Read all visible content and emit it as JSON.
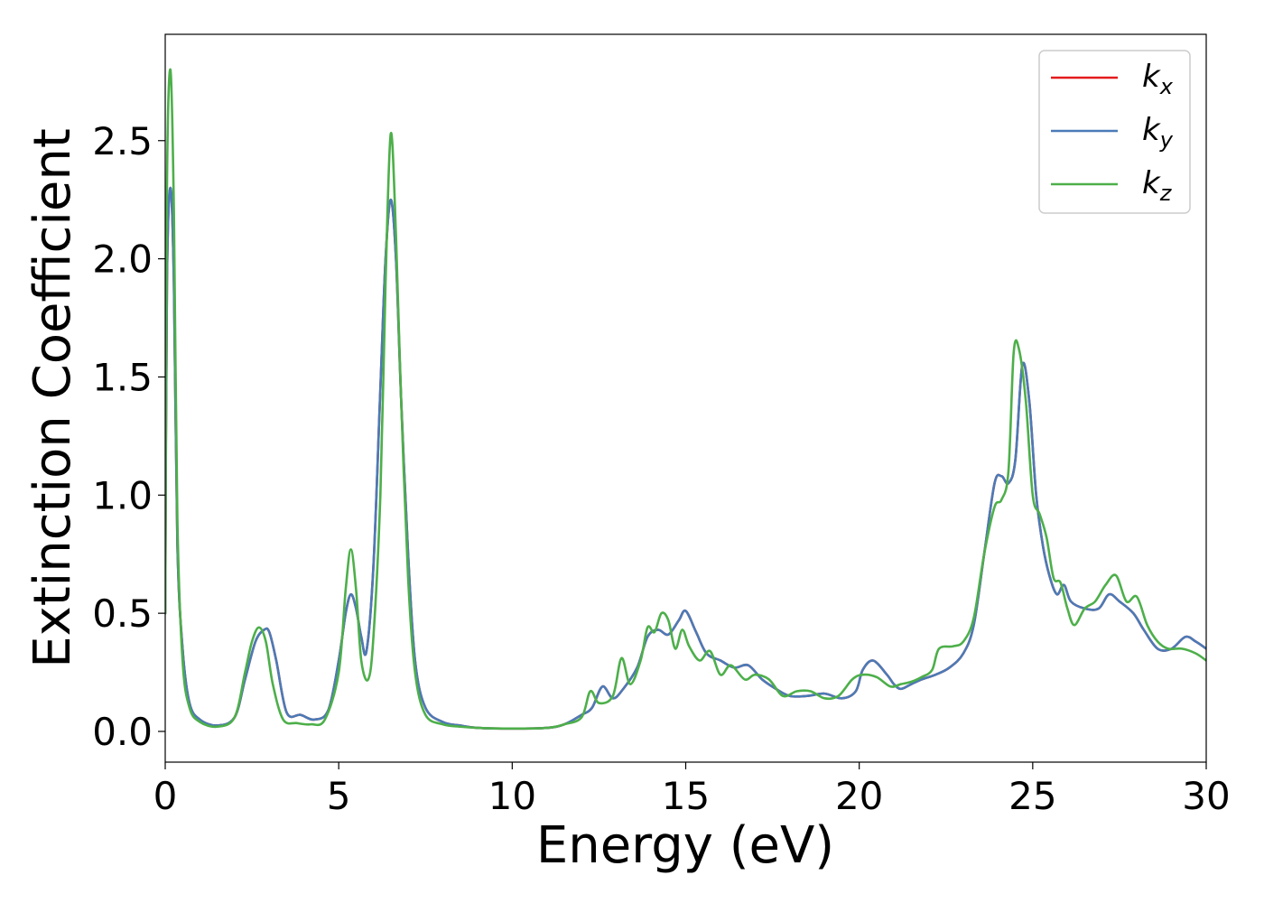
{
  "chart_data": {
    "type": "line",
    "xlabel": "Energy (eV)",
    "ylabel": "Extinction Coefficient",
    "xlim": [
      0,
      30
    ],
    "ylim": [
      -0.13,
      2.95
    ],
    "xticks": [
      0,
      5,
      10,
      15,
      20,
      25,
      30
    ],
    "xtick_labels": [
      "0",
      "5",
      "10",
      "15",
      "20",
      "25",
      "30"
    ],
    "yticks": [
      0.0,
      0.5,
      1.0,
      1.5,
      2.0,
      2.5
    ],
    "ytick_labels": [
      "0.0",
      "0.5",
      "1.0",
      "1.5",
      "2.0",
      "2.5"
    ],
    "grid": false,
    "legend_position": "top-right",
    "series": [
      {
        "name": "k",
        "subscript": "x",
        "color": "#e41a1c",
        "x": [
          0,
          0.05,
          0.15,
          0.25,
          0.35,
          0.5,
          0.7,
          1.0,
          1.5,
          2.0,
          2.3,
          2.6,
          2.85,
          3.0,
          3.2,
          3.5,
          3.9,
          4.3,
          4.7,
          5.0,
          5.2,
          5.35,
          5.5,
          5.65,
          5.8,
          6.0,
          6.2,
          6.35,
          6.5,
          6.65,
          6.8,
          7.0,
          7.2,
          7.5,
          8.0,
          8.5,
          9.0,
          10.0,
          11.0,
          11.5,
          12.0,
          12.3,
          12.6,
          12.9,
          13.2,
          13.6,
          13.9,
          14.2,
          14.5,
          14.8,
          15.0,
          15.3,
          15.6,
          16.0,
          16.4,
          16.8,
          17.2,
          17.6,
          18.0,
          18.5,
          19.0,
          19.5,
          19.9,
          20.1,
          20.4,
          20.8,
          21.0,
          21.2,
          21.5,
          21.8,
          22.2,
          22.6,
          23.0,
          23.3,
          23.6,
          23.9,
          24.1,
          24.3,
          24.5,
          24.7,
          24.9,
          25.1,
          25.3,
          25.5,
          25.7,
          25.9,
          26.1,
          26.5,
          26.9,
          27.2,
          27.5,
          27.9,
          28.2,
          28.6,
          29.0,
          29.4,
          29.7,
          30.0
        ],
        "y": [
          0.5,
          1.9,
          2.3,
          1.9,
          0.8,
          0.35,
          0.12,
          0.05,
          0.025,
          0.06,
          0.22,
          0.38,
          0.43,
          0.42,
          0.3,
          0.08,
          0.07,
          0.05,
          0.09,
          0.3,
          0.5,
          0.58,
          0.52,
          0.4,
          0.34,
          0.7,
          1.45,
          2.0,
          2.25,
          2.0,
          1.4,
          0.75,
          0.3,
          0.1,
          0.04,
          0.025,
          0.015,
          0.012,
          0.015,
          0.03,
          0.07,
          0.1,
          0.19,
          0.14,
          0.18,
          0.27,
          0.4,
          0.43,
          0.41,
          0.47,
          0.51,
          0.42,
          0.33,
          0.3,
          0.27,
          0.28,
          0.22,
          0.18,
          0.15,
          0.15,
          0.16,
          0.14,
          0.17,
          0.26,
          0.3,
          0.24,
          0.2,
          0.18,
          0.2,
          0.22,
          0.24,
          0.27,
          0.33,
          0.45,
          0.75,
          1.05,
          1.08,
          1.05,
          1.15,
          1.55,
          1.4,
          1.0,
          0.78,
          0.65,
          0.58,
          0.62,
          0.55,
          0.52,
          0.52,
          0.58,
          0.55,
          0.5,
          0.43,
          0.35,
          0.35,
          0.4,
          0.38,
          0.35
        ]
      },
      {
        "name": "k",
        "subscript": "y",
        "color": "#4a7bb7",
        "x": [
          0,
          0.05,
          0.15,
          0.25,
          0.35,
          0.5,
          0.7,
          1.0,
          1.5,
          2.0,
          2.3,
          2.6,
          2.85,
          3.0,
          3.2,
          3.5,
          3.9,
          4.3,
          4.7,
          5.0,
          5.2,
          5.35,
          5.5,
          5.65,
          5.8,
          6.0,
          6.2,
          6.35,
          6.5,
          6.65,
          6.8,
          7.0,
          7.2,
          7.5,
          8.0,
          8.5,
          9.0,
          10.0,
          11.0,
          11.5,
          12.0,
          12.3,
          12.6,
          12.9,
          13.2,
          13.6,
          13.9,
          14.2,
          14.5,
          14.8,
          15.0,
          15.3,
          15.6,
          16.0,
          16.4,
          16.8,
          17.2,
          17.6,
          18.0,
          18.5,
          19.0,
          19.5,
          19.9,
          20.1,
          20.4,
          20.8,
          21.0,
          21.2,
          21.5,
          21.8,
          22.2,
          22.6,
          23.0,
          23.3,
          23.6,
          23.9,
          24.1,
          24.3,
          24.5,
          24.7,
          24.9,
          25.1,
          25.3,
          25.5,
          25.7,
          25.9,
          26.1,
          26.5,
          26.9,
          27.2,
          27.5,
          27.9,
          28.2,
          28.6,
          29.0,
          29.4,
          29.7,
          30.0
        ],
        "y": [
          0.5,
          1.9,
          2.3,
          1.9,
          0.8,
          0.35,
          0.12,
          0.05,
          0.025,
          0.06,
          0.22,
          0.38,
          0.43,
          0.42,
          0.3,
          0.08,
          0.07,
          0.05,
          0.09,
          0.3,
          0.5,
          0.58,
          0.52,
          0.4,
          0.34,
          0.7,
          1.45,
          2.0,
          2.25,
          2.0,
          1.4,
          0.75,
          0.3,
          0.1,
          0.04,
          0.025,
          0.015,
          0.012,
          0.015,
          0.03,
          0.07,
          0.1,
          0.19,
          0.14,
          0.18,
          0.27,
          0.4,
          0.43,
          0.41,
          0.47,
          0.51,
          0.42,
          0.33,
          0.3,
          0.27,
          0.28,
          0.22,
          0.18,
          0.15,
          0.15,
          0.16,
          0.14,
          0.17,
          0.26,
          0.3,
          0.24,
          0.2,
          0.18,
          0.2,
          0.22,
          0.24,
          0.27,
          0.33,
          0.45,
          0.75,
          1.05,
          1.08,
          1.05,
          1.15,
          1.55,
          1.4,
          1.0,
          0.78,
          0.65,
          0.58,
          0.62,
          0.55,
          0.52,
          0.52,
          0.58,
          0.55,
          0.5,
          0.43,
          0.35,
          0.35,
          0.4,
          0.38,
          0.35
        ]
      },
      {
        "name": "k",
        "subscript": "z",
        "color": "#4daf4a",
        "x": [
          0,
          0.05,
          0.15,
          0.25,
          0.35,
          0.5,
          0.7,
          1.0,
          1.5,
          2.0,
          2.3,
          2.5,
          2.7,
          2.9,
          3.1,
          3.4,
          3.8,
          4.2,
          4.6,
          5.0,
          5.2,
          5.35,
          5.5,
          5.65,
          5.85,
          6.0,
          6.2,
          6.35,
          6.5,
          6.65,
          6.8,
          7.0,
          7.2,
          7.5,
          8.0,
          8.5,
          9.0,
          10.0,
          11.0,
          11.5,
          12.0,
          12.25,
          12.5,
          12.9,
          13.15,
          13.4,
          13.7,
          13.9,
          14.1,
          14.3,
          14.5,
          14.7,
          14.9,
          15.1,
          15.4,
          15.7,
          16.0,
          16.3,
          16.7,
          17.0,
          17.4,
          17.8,
          18.2,
          18.6,
          19.0,
          19.4,
          19.8,
          20.1,
          20.5,
          20.9,
          21.2,
          21.5,
          21.8,
          22.1,
          22.3,
          22.7,
          23.0,
          23.3,
          23.6,
          23.9,
          24.1,
          24.3,
          24.45,
          24.6,
          24.8,
          25.0,
          25.2,
          25.4,
          25.6,
          25.8,
          26.0,
          26.2,
          26.5,
          26.8,
          27.1,
          27.4,
          27.7,
          28.0,
          28.3,
          28.6,
          28.9,
          29.3,
          29.7,
          30.0
        ],
        "y": [
          0.5,
          2.3,
          2.8,
          2.2,
          0.9,
          0.3,
          0.1,
          0.04,
          0.02,
          0.06,
          0.25,
          0.38,
          0.44,
          0.38,
          0.2,
          0.05,
          0.035,
          0.03,
          0.05,
          0.25,
          0.6,
          0.77,
          0.6,
          0.3,
          0.22,
          0.4,
          1.0,
          1.9,
          2.53,
          2.1,
          1.4,
          0.65,
          0.25,
          0.07,
          0.03,
          0.02,
          0.015,
          0.012,
          0.015,
          0.03,
          0.06,
          0.17,
          0.12,
          0.15,
          0.31,
          0.2,
          0.3,
          0.44,
          0.42,
          0.5,
          0.47,
          0.35,
          0.43,
          0.36,
          0.3,
          0.34,
          0.24,
          0.28,
          0.22,
          0.24,
          0.22,
          0.15,
          0.17,
          0.17,
          0.14,
          0.15,
          0.22,
          0.24,
          0.23,
          0.19,
          0.2,
          0.21,
          0.23,
          0.26,
          0.35,
          0.36,
          0.38,
          0.48,
          0.75,
          0.95,
          0.98,
          1.1,
          1.6,
          1.62,
          1.4,
          1.0,
          0.92,
          0.82,
          0.65,
          0.63,
          0.52,
          0.45,
          0.52,
          0.55,
          0.62,
          0.66,
          0.55,
          0.57,
          0.45,
          0.38,
          0.35,
          0.35,
          0.33,
          0.3
        ]
      }
    ]
  }
}
